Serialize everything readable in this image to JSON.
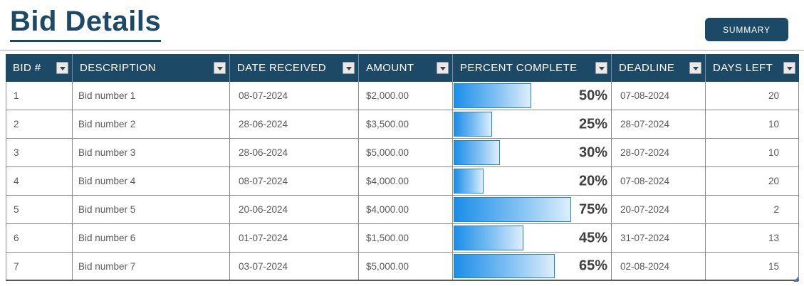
{
  "page": {
    "title": "Bid Details"
  },
  "toolbar": {
    "summary_label": "SUMMARY"
  },
  "colors": {
    "navy": "#1C4966",
    "bar_start": "#1b8ee9",
    "bar_end": "#ddeefb",
    "bar_border": "#1b86e0",
    "grid": "#8c8c8c",
    "text": "#595959"
  },
  "table": {
    "columns": [
      {
        "key": "bid",
        "label": "BID #"
      },
      {
        "key": "description",
        "label": "DESCRIPTION"
      },
      {
        "key": "date_received",
        "label": "DATE RECEIVED"
      },
      {
        "key": "amount",
        "label": "AMOUNT"
      },
      {
        "key": "percent",
        "label": "PERCENT COMPLETE"
      },
      {
        "key": "deadline",
        "label": "DEADLINE"
      },
      {
        "key": "days_left",
        "label": "DAYS LEFT"
      }
    ],
    "rows": [
      {
        "bid": "1",
        "description": "Bid number 1",
        "date_received": "08-07-2024",
        "amount": "$2,000.00",
        "percent": 50,
        "percent_label": "50%",
        "deadline": "07-08-2024",
        "days_left": "20"
      },
      {
        "bid": "2",
        "description": "Bid number 2",
        "date_received": "28-06-2024",
        "amount": "$3,500.00",
        "percent": 25,
        "percent_label": "25%",
        "deadline": "28-07-2024",
        "days_left": "10"
      },
      {
        "bid": "3",
        "description": "Bid number 3",
        "date_received": "28-06-2024",
        "amount": "$5,000.00",
        "percent": 30,
        "percent_label": "30%",
        "deadline": "28-07-2024",
        "days_left": "10"
      },
      {
        "bid": "4",
        "description": "Bid number 4",
        "date_received": "08-07-2024",
        "amount": "$4,000.00",
        "percent": 20,
        "percent_label": "20%",
        "deadline": "07-08-2024",
        "days_left": "20"
      },
      {
        "bid": "5",
        "description": "Bid number 5",
        "date_received": "20-06-2024",
        "amount": "$4,000.00",
        "percent": 75,
        "percent_label": "75%",
        "deadline": "20-07-2024",
        "days_left": "2"
      },
      {
        "bid": "6",
        "description": "Bid number 6",
        "date_received": "01-07-2024",
        "amount": "$1,500.00",
        "percent": 45,
        "percent_label": "45%",
        "deadline": "31-07-2024",
        "days_left": "13"
      },
      {
        "bid": "7",
        "description": "Bid number 7",
        "date_received": "03-07-2024",
        "amount": "$5,000.00",
        "percent": 65,
        "percent_label": "65%",
        "deadline": "02-08-2024",
        "days_left": "15"
      }
    ]
  }
}
